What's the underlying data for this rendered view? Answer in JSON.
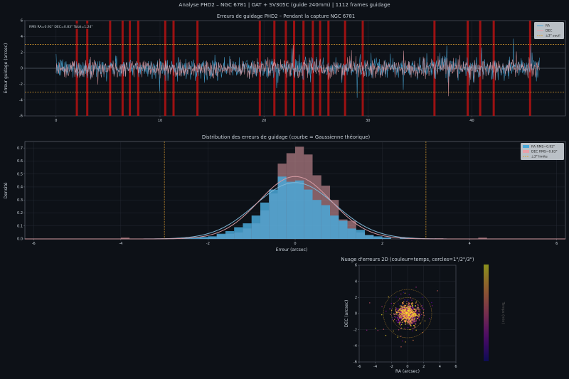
{
  "suptitle": "Analyse PHD2 – NGC 6781 | OAT + SV305C (guide 240mm) | 1112 frames guidage",
  "colors": {
    "ra": "#4aa8d8",
    "dec": "#e8a0a8",
    "threshold": "#e0a030",
    "alert": "#cc1111",
    "grid": "#2a2f38",
    "bg": "#0d1117",
    "axes": "#6e7681"
  },
  "chart_data": [
    {
      "type": "line",
      "title": "Erreurs de guidage PHD2 – Pendant la capture NGC 6781",
      "xlabel": "",
      "ylabel": "Erreur guidage (arcsec)",
      "xlim": [
        -3,
        49
      ],
      "ylim": [
        -6,
        6
      ],
      "xticks": [
        0,
        10,
        20,
        30,
        40
      ],
      "yticks": [
        -6,
        -4,
        -2,
        0,
        2,
        4,
        6
      ],
      "stats_label": "RMS RA=0.92\"  DEC=0.83\"  Total=1.24\"",
      "threshold": 3,
      "series": [
        {
          "name": "RA",
          "rms": 0.92,
          "x_range": [
            0,
            46.5
          ],
          "n_points": 1112
        },
        {
          "name": "DEC",
          "rms": 0.83,
          "x_range": [
            0,
            46.5
          ],
          "n_points": 1112
        }
      ],
      "threshold_label": "±3\" seuil",
      "alert_times": [
        2.0,
        3.0,
        5.2,
        6.4,
        7.1,
        7.9,
        10.5,
        11.3,
        13.6,
        19.6,
        21.0,
        22.1,
        22.9,
        23.8,
        24.7,
        25.4,
        26.2,
        27.8,
        29.5,
        36.4,
        39.6,
        40.8,
        42.1,
        45.6
      ],
      "legend_loc": "upper right",
      "grid": true
    },
    {
      "type": "histogram",
      "title": "Distribution des erreurs de guidage (courbe = Gaussienne théorique)",
      "xlabel": "Erreur (arcsec)",
      "ylabel": "Densité",
      "xlim": [
        -6.2,
        6.2
      ],
      "ylim": [
        0,
        0.75
      ],
      "xticks": [
        -6,
        -4,
        -2,
        0,
        2,
        4,
        6
      ],
      "yticks": [
        0.0,
        0.1,
        0.2,
        0.3,
        0.4,
        0.5,
        0.6,
        0.7
      ],
      "bin_edges": [
        -6.0,
        -5.8,
        -5.6,
        -5.4,
        -5.2,
        -5.0,
        -4.8,
        -4.6,
        -4.4,
        -4.2,
        -4.0,
        -3.8,
        -3.6,
        -3.4,
        -3.2,
        -3.0,
        -2.8,
        -2.6,
        -2.4,
        -2.2,
        -2.0,
        -1.8,
        -1.6,
        -1.4,
        -1.2,
        -1.0,
        -0.8,
        -0.6,
        -0.4,
        -0.2,
        0.0,
        0.2,
        0.4,
        0.6,
        0.8,
        1.0,
        1.2,
        1.4,
        1.6,
        1.8,
        2.0,
        2.2,
        2.4,
        2.6,
        2.8,
        3.0,
        3.2,
        3.4,
        3.6,
        3.8,
        4.0,
        4.2,
        4.4,
        4.6,
        4.8,
        5.0,
        5.2,
        5.4,
        5.6,
        5.8,
        6.0
      ],
      "series": [
        {
          "name": "RA  RMS=0.92\"",
          "rms": 0.92,
          "values": [
            0,
            0,
            0,
            0,
            0,
            0,
            0,
            0,
            0,
            0,
            0,
            0,
            0,
            0,
            0,
            0,
            0,
            0.005,
            0.01,
            0.015,
            0.02,
            0.04,
            0.06,
            0.09,
            0.12,
            0.18,
            0.28,
            0.38,
            0.48,
            0.44,
            0.45,
            0.38,
            0.3,
            0.26,
            0.18,
            0.14,
            0.08,
            0.07,
            0.03,
            0.02,
            0.01,
            0,
            0.005,
            0,
            0,
            0,
            0,
            0,
            0,
            0,
            0,
            0,
            0,
            0,
            0,
            0,
            0,
            0,
            0,
            0
          ]
        },
        {
          "name": "DEC RMS=0.83\"",
          "rms": 0.83,
          "values": [
            0,
            0,
            0,
            0,
            0,
            0,
            0,
            0,
            0,
            0,
            0.01,
            0,
            0,
            0,
            0,
            0,
            0,
            0,
            0,
            0.005,
            0.01,
            0.03,
            0.04,
            0.05,
            0.08,
            0.12,
            0.22,
            0.35,
            0.58,
            0.66,
            0.71,
            0.65,
            0.49,
            0.41,
            0.3,
            0.15,
            0.14,
            0.05,
            0.03,
            0.01,
            0.01,
            0,
            0,
            0,
            0,
            0,
            0.005,
            0,
            0,
            0,
            0,
            0.01,
            0,
            0,
            0,
            0,
            0,
            0,
            0,
            0
          ]
        }
      ],
      "threshold_label": "±3\" limite",
      "threshold": 3,
      "legend_loc": "upper right",
      "grid": true
    },
    {
      "type": "scatter",
      "title": "Nuage d'erreurs 2D (couleur=temps, cercles=1\"/2\"/3\")",
      "xlabel": "RA (arcsec)",
      "ylabel": "DEC (arcsec)",
      "xlim": [
        -6,
        6
      ],
      "ylim": [
        -6,
        6
      ],
      "xticks": [
        -6,
        -4,
        -2,
        0,
        2,
        4,
        6
      ],
      "yticks": [
        -6,
        -4,
        -2,
        0,
        2,
        4,
        6
      ],
      "circles": [
        1,
        2,
        3
      ],
      "n_points": 1112,
      "colormap": "plasma",
      "colorbar_label": "Temps (min)"
    }
  ]
}
